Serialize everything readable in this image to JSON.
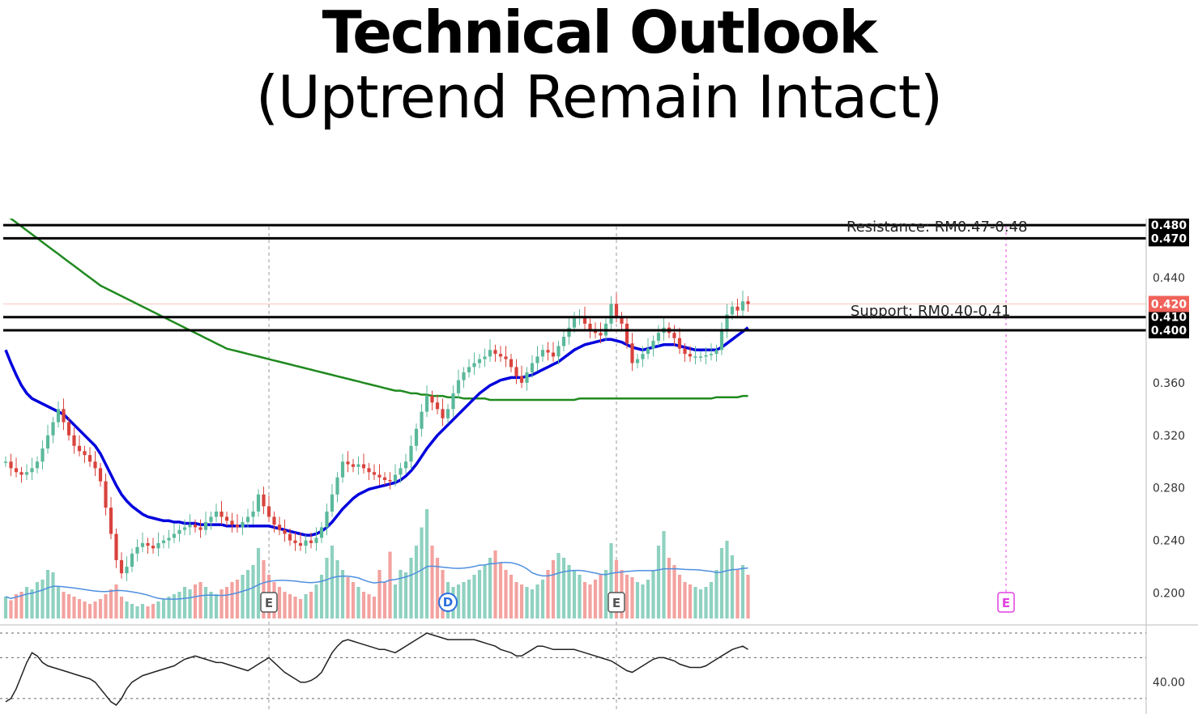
{
  "page": {
    "title": "Technical Outlook",
    "subtitle": "(Uptrend Remain Intact)"
  },
  "colors": {
    "up": "#5bb89b",
    "down": "#d9433d",
    "ma_fast": "#0000dd",
    "ma_slow": "#1f8a1f",
    "vol_up": "#8fd1c0",
    "vol_down": "#f3a3a0",
    "vol_ma": "#4f8fe0",
    "level": "#000000",
    "last_price": "#f0625a",
    "rsi": "#222222",
    "earnings_future": "#e040e0"
  },
  "chart_data": {
    "type": "candlestick",
    "ylim": [
      0.18,
      0.485
    ],
    "y_ticks": [
      "0.440",
      "0.360",
      "0.320",
      "0.280",
      "0.240",
      "0.200"
    ],
    "levels": [
      {
        "value": 0.48,
        "label": "0.480"
      },
      {
        "value": 0.47,
        "label": "0.470"
      },
      {
        "value": 0.41,
        "label": "0.410"
      },
      {
        "value": 0.4,
        "label": "0.400"
      }
    ],
    "last_price": {
      "value": 0.42,
      "label": "0.420"
    },
    "annotations": {
      "resistance": "Resistance: RM0.47-0.48",
      "support": "Support: RM0.40-0.41"
    },
    "events": [
      {
        "index": 50,
        "label": "E",
        "kind": "earnings"
      },
      {
        "index": 84,
        "label": "D",
        "kind": "dividend"
      },
      {
        "index": 116,
        "label": "E",
        "kind": "earnings"
      },
      {
        "index": 190,
        "label": "E",
        "kind": "future-earnings"
      }
    ],
    "closes": [
      0.3,
      0.295,
      0.292,
      0.29,
      0.292,
      0.295,
      0.3,
      0.31,
      0.32,
      0.33,
      0.34,
      0.33,
      0.32,
      0.312,
      0.308,
      0.305,
      0.3,
      0.295,
      0.285,
      0.265,
      0.245,
      0.225,
      0.215,
      0.22,
      0.23,
      0.235,
      0.238,
      0.236,
      0.234,
      0.238,
      0.24,
      0.242,
      0.245,
      0.248,
      0.25,
      0.252,
      0.25,
      0.248,
      0.254,
      0.258,
      0.262,
      0.258,
      0.255,
      0.252,
      0.25,
      0.254,
      0.258,
      0.262,
      0.275,
      0.266,
      0.258,
      0.252,
      0.248,
      0.245,
      0.24,
      0.238,
      0.236,
      0.24,
      0.238,
      0.242,
      0.25,
      0.262,
      0.275,
      0.288,
      0.3,
      0.298,
      0.296,
      0.298,
      0.295,
      0.292,
      0.29,
      0.288,
      0.286,
      0.285,
      0.29,
      0.295,
      0.3,
      0.312,
      0.325,
      0.338,
      0.35,
      0.345,
      0.34,
      0.333,
      0.34,
      0.352,
      0.362,
      0.368,
      0.372,
      0.375,
      0.378,
      0.38,
      0.385,
      0.382,
      0.38,
      0.378,
      0.372,
      0.365,
      0.36,
      0.368,
      0.375,
      0.38,
      0.385,
      0.383,
      0.38,
      0.388,
      0.395,
      0.402,
      0.41,
      0.41,
      0.405,
      0.4,
      0.398,
      0.396,
      0.405,
      0.42,
      0.41,
      0.405,
      0.39,
      0.375,
      0.378,
      0.382,
      0.386,
      0.392,
      0.398,
      0.402,
      0.398,
      0.394,
      0.386,
      0.382,
      0.38,
      0.38,
      0.38,
      0.381,
      0.382,
      0.385,
      0.4,
      0.412,
      0.418,
      0.415,
      0.422,
      0.42
    ],
    "ma_fast": [
      0.385,
      0.375,
      0.366,
      0.358,
      0.352,
      0.348,
      0.346,
      0.344,
      0.342,
      0.34,
      0.338,
      0.336,
      0.332,
      0.328,
      0.324,
      0.32,
      0.316,
      0.312,
      0.306,
      0.298,
      0.29,
      0.282,
      0.275,
      0.27,
      0.266,
      0.263,
      0.26,
      0.258,
      0.257,
      0.256,
      0.255,
      0.255,
      0.254,
      0.254,
      0.253,
      0.253,
      0.253,
      0.252,
      0.252,
      0.252,
      0.252,
      0.252,
      0.251,
      0.251,
      0.251,
      0.251,
      0.251,
      0.251,
      0.251,
      0.251,
      0.251,
      0.25,
      0.249,
      0.248,
      0.247,
      0.246,
      0.245,
      0.244,
      0.244,
      0.245,
      0.247,
      0.25,
      0.254,
      0.259,
      0.264,
      0.268,
      0.272,
      0.275,
      0.277,
      0.279,
      0.28,
      0.281,
      0.282,
      0.283,
      0.284,
      0.286,
      0.289,
      0.293,
      0.298,
      0.304,
      0.31,
      0.315,
      0.32,
      0.324,
      0.328,
      0.332,
      0.336,
      0.34,
      0.344,
      0.348,
      0.352,
      0.355,
      0.358,
      0.36,
      0.362,
      0.363,
      0.364,
      0.364,
      0.364,
      0.365,
      0.366,
      0.368,
      0.37,
      0.372,
      0.374,
      0.376,
      0.379,
      0.382,
      0.385,
      0.387,
      0.389,
      0.39,
      0.391,
      0.392,
      0.393,
      0.393,
      0.392,
      0.391,
      0.389,
      0.387,
      0.386,
      0.385,
      0.386,
      0.387,
      0.388,
      0.389,
      0.389,
      0.389,
      0.388,
      0.387,
      0.386,
      0.385,
      0.385,
      0.385,
      0.385,
      0.385,
      0.387,
      0.39,
      0.393,
      0.396,
      0.399,
      0.402
    ],
    "ma_slow": [
      0.488,
      0.485,
      0.482,
      0.479,
      0.476,
      0.473,
      0.47,
      0.467,
      0.464,
      0.461,
      0.458,
      0.455,
      0.452,
      0.449,
      0.446,
      0.443,
      0.44,
      0.437,
      0.434,
      0.432,
      0.43,
      0.428,
      0.426,
      0.424,
      0.422,
      0.42,
      0.418,
      0.416,
      0.414,
      0.412,
      0.41,
      0.408,
      0.406,
      0.404,
      0.402,
      0.4,
      0.398,
      0.396,
      0.394,
      0.392,
      0.39,
      0.388,
      0.386,
      0.385,
      0.384,
      0.383,
      0.382,
      0.381,
      0.38,
      0.379,
      0.378,
      0.377,
      0.376,
      0.375,
      0.374,
      0.373,
      0.372,
      0.371,
      0.37,
      0.369,
      0.368,
      0.367,
      0.366,
      0.365,
      0.364,
      0.363,
      0.362,
      0.361,
      0.36,
      0.359,
      0.358,
      0.357,
      0.356,
      0.355,
      0.354,
      0.354,
      0.353,
      0.352,
      0.352,
      0.351,
      0.351,
      0.35,
      0.35,
      0.35,
      0.349,
      0.349,
      0.349,
      0.348,
      0.348,
      0.348,
      0.348,
      0.348,
      0.347,
      0.347,
      0.347,
      0.347,
      0.347,
      0.347,
      0.347,
      0.347,
      0.347,
      0.347,
      0.347,
      0.347,
      0.347,
      0.347,
      0.347,
      0.347,
      0.347,
      0.348,
      0.348,
      0.348,
      0.348,
      0.348,
      0.348,
      0.348,
      0.348,
      0.348,
      0.348,
      0.348,
      0.348,
      0.348,
      0.348,
      0.348,
      0.348,
      0.348,
      0.348,
      0.348,
      0.348,
      0.348,
      0.348,
      0.348,
      0.348,
      0.348,
      0.348,
      0.349,
      0.349,
      0.349,
      0.349,
      0.349,
      0.35,
      0.35
    ],
    "volume": [
      18,
      15,
      20,
      22,
      26,
      24,
      30,
      32,
      40,
      38,
      26,
      22,
      20,
      18,
      16,
      14,
      12,
      14,
      16,
      20,
      24,
      28,
      18,
      14,
      12,
      10,
      12,
      10,
      12,
      14,
      16,
      18,
      20,
      22,
      26,
      24,
      28,
      30,
      26,
      22,
      20,
      24,
      26,
      30,
      32,
      36,
      40,
      44,
      58,
      48,
      36,
      30,
      26,
      22,
      20,
      18,
      16,
      20,
      22,
      28,
      36,
      50,
      60,
      48,
      40,
      34,
      30,
      26,
      22,
      20,
      18,
      40,
      30,
      55,
      28,
      40,
      38,
      50,
      60,
      75,
      90,
      60,
      50,
      40,
      30,
      26,
      28,
      30,
      32,
      36,
      40,
      44,
      50,
      56,
      46,
      40,
      36,
      30,
      28,
      26,
      24,
      28,
      32,
      40,
      48,
      54,
      50,
      44,
      40,
      36,
      30,
      28,
      32,
      36,
      40,
      62,
      48,
      40,
      36,
      34,
      30,
      28,
      32,
      40,
      60,
      72,
      50,
      44,
      36,
      30,
      28,
      26,
      24,
      26,
      30,
      40,
      58,
      64,
      52,
      40,
      44,
      36
    ],
    "rsi": [
      28,
      30,
      36,
      44,
      52,
      58,
      56,
      52,
      50,
      49,
      48,
      47,
      46,
      45,
      44,
      43,
      42,
      40,
      36,
      32,
      28,
      26,
      30,
      36,
      40,
      42,
      44,
      45,
      46,
      47,
      48,
      49,
      50,
      52,
      54,
      55,
      56,
      55,
      54,
      53,
      52,
      52,
      51,
      50,
      49,
      48,
      47,
      49,
      51,
      53,
      55,
      52,
      49,
      46,
      44,
      42,
      40,
      40,
      41,
      43,
      46,
      52,
      58,
      62,
      65,
      66,
      65,
      64,
      63,
      62,
      61,
      60,
      60,
      59,
      58,
      60,
      62,
      64,
      66,
      68,
      70,
      69,
      68,
      67,
      66,
      66,
      66,
      66,
      66,
      66,
      65,
      64,
      63,
      62,
      60,
      59,
      58,
      56,
      56,
      58,
      60,
      62,
      62,
      61,
      60,
      60,
      60,
      60,
      60,
      59,
      58,
      57,
      56,
      55,
      54,
      53,
      51,
      49,
      47,
      46,
      48,
      50,
      52,
      54,
      55,
      55,
      54,
      53,
      51,
      50,
      49,
      49,
      49,
      50,
      52,
      54,
      56,
      58,
      60,
      61,
      62,
      60
    ]
  }
}
